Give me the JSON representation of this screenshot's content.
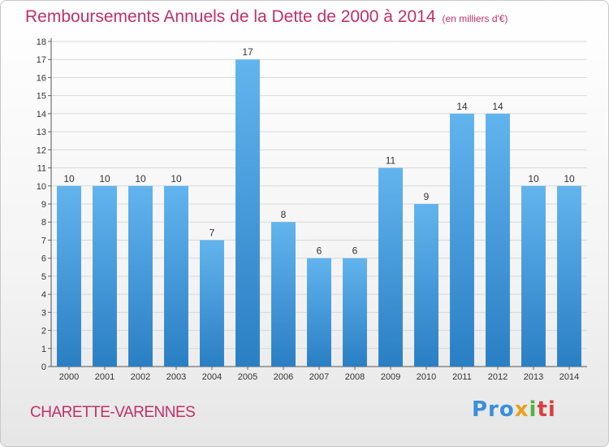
{
  "chart_data": {
    "type": "bar",
    "title": "Remboursements Annuels de la Dette de 2000 à 2014",
    "subtitle": "(en milliers d'€)",
    "categories": [
      "2000",
      "2001",
      "2002",
      "2003",
      "2004",
      "2005",
      "2006",
      "2007",
      "2008",
      "2009",
      "2010",
      "2011",
      "2012",
      "2013",
      "2014"
    ],
    "values": [
      10,
      10,
      10,
      10,
      7,
      17,
      8,
      6,
      6,
      11,
      9,
      14,
      14,
      10,
      10
    ],
    "ylim": [
      0,
      18
    ],
    "yticks": [
      0,
      1,
      2,
      3,
      4,
      5,
      6,
      7,
      8,
      9,
      10,
      11,
      12,
      13,
      14,
      15,
      16,
      17,
      18
    ],
    "grid": true,
    "colors": {
      "bar_top": "#62b4ee",
      "bar_bottom": "#2a7fc4",
      "grid": "#d8d8d8"
    }
  },
  "footer": {
    "commune": "CHARETTE-VARENNES",
    "logo_parts": [
      "Pro",
      "x",
      "i",
      "ti"
    ]
  }
}
